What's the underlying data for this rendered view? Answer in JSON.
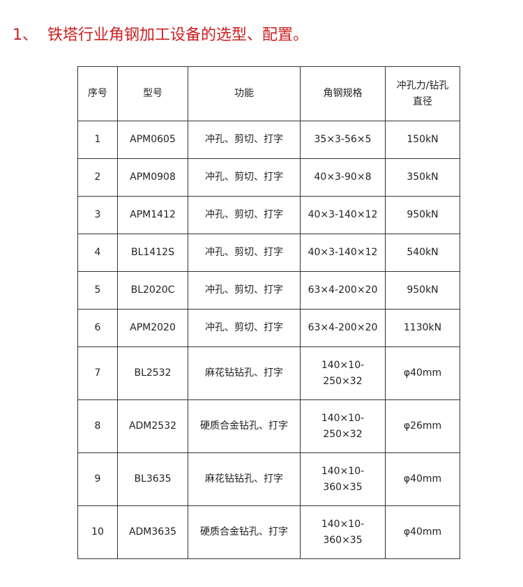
{
  "title": "1、  铁塔行业角钢加工设备的选型、配置。",
  "colors": {
    "title": "#cc1f1f"
  },
  "table": {
    "headers": [
      "序号",
      "型号",
      "功能",
      "角钢规格",
      "冲孔力/钻孔直径"
    ],
    "rows": [
      [
        "1",
        "APM0605",
        "冲孔、剪切、打字",
        "35×3-56×5",
        "150kN"
      ],
      [
        "2",
        "APM0908",
        "冲孔、剪切、打字",
        "40×3-90×8",
        "350kN"
      ],
      [
        "3",
        "APM1412",
        "冲孔、剪切、打字",
        "40×3-140×12",
        "950kN"
      ],
      [
        "4",
        "BL1412S",
        "冲孔、剪切、打字",
        "40×3-140×12",
        "540kN"
      ],
      [
        "5",
        "BL2020C",
        "冲孔、剪切、打字",
        "63×4-200×20",
        "950kN"
      ],
      [
        "6",
        "APM2020",
        "冲孔、剪切、打字",
        "63×4-200×20",
        "1130kN"
      ],
      [
        "7",
        "BL2532",
        "麻花钻钻孔、打字",
        "140×10-250×32",
        "φ40mm"
      ],
      [
        "8",
        "ADM2532",
        "硬质合金钻孔、打字",
        "140×10-250×32",
        "φ26mm"
      ],
      [
        "9",
        "BL3635",
        "麻花钻钻孔、打字",
        "140×10-360×35",
        "φ40mm"
      ],
      [
        "10",
        "ADM3635",
        "硬质合金钻孔、打字",
        "140×10-360×35",
        "φ40mm"
      ]
    ]
  }
}
